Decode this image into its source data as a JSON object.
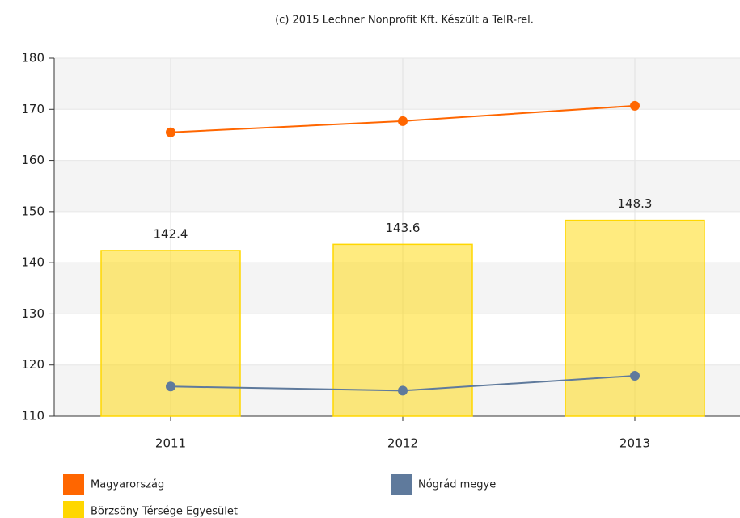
{
  "chart_data": {
    "type": "bar",
    "title": "(c) 2015 Lechner Nonprofit Kft. Készült a TeIR-rel.",
    "categories": [
      "2011",
      "2012",
      "2013"
    ],
    "series": [
      {
        "name": "Magyarország",
        "type": "line",
        "color": "#ff6600",
        "values": [
          165.5,
          167.7,
          170.7
        ]
      },
      {
        "name": "Nógrád megye",
        "type": "line",
        "color": "#5f7a9c",
        "values": [
          115.8,
          115.0,
          117.9
        ]
      },
      {
        "name": "Börzsöny Térsége Egyesület",
        "type": "bar",
        "color": "#ffd700",
        "values": [
          142.4,
          143.6,
          148.3
        ],
        "value_labels": [
          "142.4",
          "143.6",
          "148.3"
        ]
      }
    ],
    "ylim": [
      110,
      180
    ],
    "yticks": [
      110,
      120,
      130,
      140,
      150,
      160,
      170,
      180
    ],
    "grid": true
  }
}
